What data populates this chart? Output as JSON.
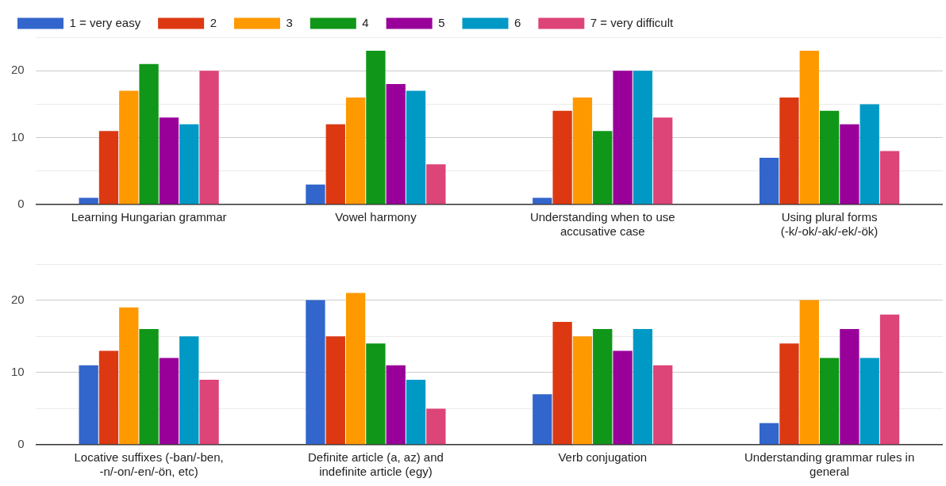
{
  "chart_data": [
    {
      "type": "bar",
      "categories": [
        "Learning Hungarian grammar",
        "Vowel harmony",
        "Understanding when to use accusative case",
        "Using plural forms (-k/-ok/-ak/-ek/-ök)"
      ],
      "series": [
        {
          "name": "1 = very easy",
          "color": "#3366cc",
          "values": [
            1,
            3,
            1,
            7
          ]
        },
        {
          "name": "2",
          "color": "#dc3912",
          "values": [
            11,
            12,
            14,
            16
          ]
        },
        {
          "name": "3",
          "color": "#ff9900",
          "values": [
            17,
            16,
            16,
            23
          ]
        },
        {
          "name": "4",
          "color": "#109618",
          "values": [
            21,
            23,
            11,
            14
          ]
        },
        {
          "name": "5",
          "color": "#990099",
          "values": [
            13,
            18,
            20,
            12
          ]
        },
        {
          "name": "6",
          "color": "#0099c6",
          "values": [
            12,
            17,
            20,
            15
          ]
        },
        {
          "name": "7 = very difficult",
          "color": "#dd4477",
          "values": [
            20,
            6,
            13,
            8
          ]
        }
      ],
      "ylim": [
        0,
        25
      ],
      "yticks": [
        0,
        {
          "value": 5,
          "label": null
        },
        10,
        {
          "value": 15,
          "label": null
        },
        20,
        {
          "value": 25,
          "label": null
        }
      ],
      "grid": "y",
      "legend": "top left"
    },
    {
      "type": "bar",
      "categories": [
        "Locative suffixes (-ban/-ben, -n/-on/-en/-ön, etc)",
        "Definite article (a, az) and indefinite article (egy)",
        "Verb conjugation",
        "Understanding grammar rules in general"
      ],
      "series": [
        {
          "color": "#3366cc",
          "values": [
            11,
            20,
            7,
            3
          ]
        },
        {
          "color": "#dc3912",
          "values": [
            13,
            15,
            17,
            14
          ]
        },
        {
          "color": "#ff9900",
          "values": [
            19,
            21,
            15,
            20
          ]
        },
        {
          "color": "#109618",
          "values": [
            16,
            14,
            16,
            12
          ]
        },
        {
          "color": "#990099",
          "values": [
            12,
            11,
            13,
            16
          ]
        },
        {
          "color": "#0099c6",
          "values": [
            15,
            9,
            16,
            12
          ]
        },
        {
          "color": "#dd4477",
          "values": [
            9,
            5,
            11,
            18
          ]
        }
      ],
      "ylim": [
        0,
        25
      ],
      "yticks": [
        0,
        {
          "value": 5,
          "label": null
        },
        10,
        {
          "value": 15,
          "label": null
        },
        20,
        {
          "value": 25,
          "label": null
        }
      ],
      "grid": "y",
      "legend": false
    }
  ]
}
